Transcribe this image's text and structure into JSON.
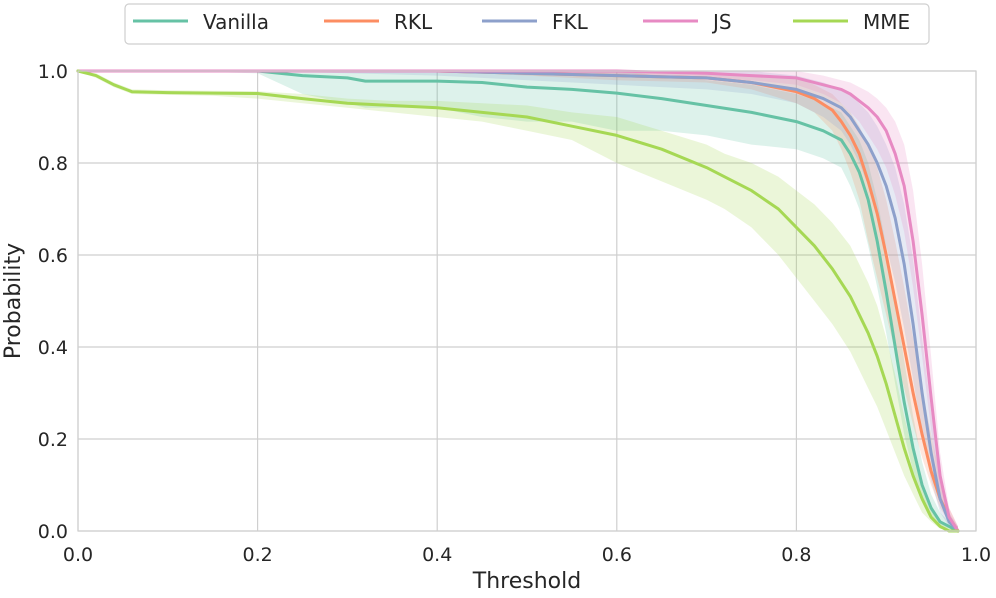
{
  "chart_data": {
    "type": "line",
    "title": "",
    "xlabel": "Threshold",
    "ylabel": "Probability",
    "xlim": [
      0.0,
      1.0
    ],
    "ylim": [
      0.0,
      1.0
    ],
    "xticks": [
      "0.0",
      "0.2",
      "0.4",
      "0.6",
      "0.8",
      "1.0"
    ],
    "yticks": [
      "0.0",
      "0.2",
      "0.4",
      "0.6",
      "0.8",
      "1.0"
    ],
    "grid": true,
    "legend_position": "top-center",
    "series": [
      {
        "name": "Vanilla",
        "color": "#66c2a5",
        "x": [
          0.0,
          0.1,
          0.2,
          0.25,
          0.3,
          0.32,
          0.4,
          0.45,
          0.5,
          0.55,
          0.6,
          0.65,
          0.7,
          0.75,
          0.8,
          0.83,
          0.85,
          0.86,
          0.87,
          0.88,
          0.89,
          0.9,
          0.91,
          0.92,
          0.93,
          0.94,
          0.95,
          0.96,
          0.97,
          0.98
        ],
        "y": [
          1.0,
          1.0,
          1.0,
          0.99,
          0.985,
          0.978,
          0.978,
          0.975,
          0.965,
          0.96,
          0.952,
          0.94,
          0.925,
          0.91,
          0.89,
          0.87,
          0.85,
          0.82,
          0.78,
          0.72,
          0.63,
          0.52,
          0.4,
          0.28,
          0.18,
          0.1,
          0.05,
          0.02,
          0.01,
          0.0
        ],
        "lower": [
          1.0,
          1.0,
          0.995,
          0.95,
          0.93,
          0.92,
          0.92,
          0.9,
          0.89,
          0.89,
          0.87,
          0.87,
          0.86,
          0.84,
          0.83,
          0.81,
          0.79,
          0.75,
          0.7,
          0.62,
          0.53,
          0.43,
          0.32,
          0.21,
          0.13,
          0.07,
          0.03,
          0.01,
          0.005,
          0.0
        ],
        "upper": [
          1.0,
          1.0,
          1.0,
          1.0,
          1.0,
          1.0,
          1.0,
          1.0,
          1.0,
          1.0,
          1.0,
          0.99,
          0.98,
          0.97,
          0.95,
          0.93,
          0.91,
          0.88,
          0.85,
          0.8,
          0.72,
          0.62,
          0.5,
          0.37,
          0.25,
          0.15,
          0.08,
          0.04,
          0.02,
          0.01
        ]
      },
      {
        "name": "RKL",
        "color": "#fc8d62",
        "x": [
          0.0,
          0.2,
          0.4,
          0.6,
          0.7,
          0.75,
          0.8,
          0.82,
          0.84,
          0.85,
          0.86,
          0.87,
          0.88,
          0.89,
          0.9,
          0.91,
          0.92,
          0.93,
          0.94,
          0.95,
          0.96,
          0.97,
          0.98
        ],
        "y": [
          1.0,
          1.0,
          1.0,
          0.99,
          0.985,
          0.975,
          0.955,
          0.94,
          0.915,
          0.89,
          0.86,
          0.82,
          0.76,
          0.69,
          0.6,
          0.5,
          0.4,
          0.3,
          0.21,
          0.13,
          0.07,
          0.03,
          0.0
        ],
        "lower": [
          1.0,
          1.0,
          1.0,
          0.98,
          0.975,
          0.96,
          0.93,
          0.91,
          0.87,
          0.83,
          0.78,
          0.72,
          0.63,
          0.55,
          0.47,
          0.39,
          0.31,
          0.23,
          0.16,
          0.1,
          0.05,
          0.02,
          0.0
        ],
        "upper": [
          1.0,
          1.0,
          1.0,
          1.0,
          0.995,
          0.99,
          0.985,
          0.97,
          0.95,
          0.93,
          0.91,
          0.88,
          0.84,
          0.79,
          0.72,
          0.63,
          0.53,
          0.42,
          0.31,
          0.21,
          0.12,
          0.05,
          0.01
        ]
      },
      {
        "name": "FKL",
        "color": "#8da0cb",
        "x": [
          0.0,
          0.2,
          0.4,
          0.6,
          0.7,
          0.75,
          0.8,
          0.83,
          0.85,
          0.86,
          0.87,
          0.88,
          0.89,
          0.9,
          0.91,
          0.92,
          0.93,
          0.94,
          0.95,
          0.96,
          0.97,
          0.98
        ],
        "y": [
          1.0,
          1.0,
          1.0,
          0.99,
          0.985,
          0.975,
          0.96,
          0.94,
          0.92,
          0.9,
          0.87,
          0.84,
          0.8,
          0.75,
          0.68,
          0.58,
          0.45,
          0.3,
          0.17,
          0.07,
          0.02,
          0.0
        ],
        "lower": [
          1.0,
          1.0,
          0.99,
          0.97,
          0.96,
          0.95,
          0.93,
          0.9,
          0.87,
          0.84,
          0.8,
          0.75,
          0.69,
          0.62,
          0.54,
          0.44,
          0.33,
          0.21,
          0.11,
          0.04,
          0.01,
          0.0
        ],
        "upper": [
          1.0,
          1.0,
          1.0,
          1.0,
          1.0,
          1.0,
          0.99,
          0.975,
          0.96,
          0.95,
          0.93,
          0.91,
          0.88,
          0.84,
          0.79,
          0.71,
          0.59,
          0.42,
          0.26,
          0.12,
          0.04,
          0.01
        ]
      },
      {
        "name": "JS",
        "color": "#e78ac3",
        "x": [
          0.0,
          0.2,
          0.4,
          0.6,
          0.7,
          0.75,
          0.8,
          0.83,
          0.85,
          0.86,
          0.87,
          0.88,
          0.89,
          0.9,
          0.91,
          0.92,
          0.93,
          0.94,
          0.95,
          0.96,
          0.97,
          0.98
        ],
        "y": [
          1.0,
          1.0,
          1.0,
          1.0,
          0.995,
          0.99,
          0.985,
          0.97,
          0.96,
          0.95,
          0.935,
          0.92,
          0.9,
          0.87,
          0.82,
          0.75,
          0.63,
          0.47,
          0.29,
          0.12,
          0.03,
          0.0
        ],
        "lower": [
          1.0,
          1.0,
          1.0,
          0.99,
          0.985,
          0.98,
          0.97,
          0.95,
          0.93,
          0.91,
          0.89,
          0.86,
          0.83,
          0.79,
          0.73,
          0.65,
          0.53,
          0.38,
          0.22,
          0.08,
          0.02,
          0.0
        ],
        "upper": [
          1.0,
          1.0,
          1.0,
          1.0,
          1.0,
          1.0,
          1.0,
          0.99,
          0.98,
          0.975,
          0.965,
          0.955,
          0.94,
          0.92,
          0.89,
          0.84,
          0.74,
          0.58,
          0.38,
          0.17,
          0.05,
          0.01
        ]
      },
      {
        "name": "MME",
        "color": "#a6d854",
        "x": [
          0.0,
          0.02,
          0.04,
          0.06,
          0.1,
          0.15,
          0.2,
          0.25,
          0.3,
          0.35,
          0.4,
          0.45,
          0.5,
          0.55,
          0.6,
          0.65,
          0.7,
          0.72,
          0.75,
          0.78,
          0.8,
          0.82,
          0.84,
          0.86,
          0.87,
          0.88,
          0.89,
          0.9,
          0.91,
          0.92,
          0.93,
          0.94,
          0.95,
          0.96,
          0.97,
          0.98
        ],
        "y": [
          1.0,
          0.99,
          0.97,
          0.955,
          0.953,
          0.952,
          0.951,
          0.94,
          0.93,
          0.925,
          0.92,
          0.91,
          0.9,
          0.88,
          0.86,
          0.83,
          0.79,
          0.77,
          0.74,
          0.7,
          0.66,
          0.62,
          0.57,
          0.51,
          0.47,
          0.43,
          0.38,
          0.32,
          0.25,
          0.18,
          0.12,
          0.07,
          0.03,
          0.01,
          0.0,
          0.0
        ],
        "lower": [
          1.0,
          0.985,
          0.965,
          0.95,
          0.948,
          0.946,
          0.94,
          0.93,
          0.92,
          0.91,
          0.9,
          0.89,
          0.87,
          0.85,
          0.8,
          0.76,
          0.72,
          0.7,
          0.66,
          0.6,
          0.55,
          0.5,
          0.45,
          0.39,
          0.35,
          0.31,
          0.27,
          0.22,
          0.17,
          0.12,
          0.08,
          0.04,
          0.02,
          0.005,
          0.0,
          0.0
        ],
        "upper": [
          1.0,
          0.995,
          0.975,
          0.96,
          0.958,
          0.957,
          0.956,
          0.95,
          0.94,
          0.935,
          0.935,
          0.93,
          0.925,
          0.91,
          0.9,
          0.87,
          0.84,
          0.82,
          0.8,
          0.77,
          0.74,
          0.71,
          0.67,
          0.62,
          0.58,
          0.54,
          0.49,
          0.42,
          0.34,
          0.25,
          0.17,
          0.1,
          0.05,
          0.02,
          0.01,
          0.0
        ]
      }
    ]
  }
}
